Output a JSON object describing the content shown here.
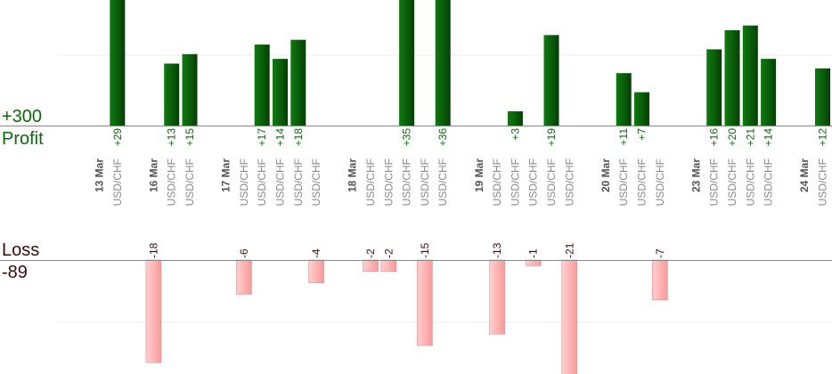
{
  "summary": {
    "profit_total": "+300",
    "profit_label": "Profit",
    "loss_label": "Loss",
    "loss_total": "-89"
  },
  "chart_data": {
    "type": "bar",
    "unit": "pips",
    "profit_axis_max": 40,
    "loss_axis_max": 25,
    "colors": {
      "profit": "#0a5c0a",
      "loss": "#ffb6b6",
      "profit_text": "#0b6b0b",
      "loss_text": "#3a0c0c"
    },
    "trades": [
      {
        "date": "13 Mar",
        "pair": "",
        "value": 0
      },
      {
        "date": "",
        "pair": "USD/CHF",
        "value": 29
      },
      {
        "date": "",
        "pair": "",
        "value": 0
      },
      {
        "date": "16 Mar",
        "pair": "",
        "value": -18
      },
      {
        "date": "",
        "pair": "USD/CHF",
        "value": 13
      },
      {
        "date": "",
        "pair": "USD/CHF",
        "value": 15
      },
      {
        "date": "",
        "pair": "",
        "value": 0
      },
      {
        "date": "17 Mar",
        "pair": "",
        "value": 0
      },
      {
        "date": "",
        "pair": "USD/CHF",
        "value": -6
      },
      {
        "date": "",
        "pair": "USD/CHF",
        "value": 17
      },
      {
        "date": "",
        "pair": "USD/CHF",
        "value": 14
      },
      {
        "date": "",
        "pair": "USD/CHF",
        "value": 18
      },
      {
        "date": "",
        "pair": "USD/CHF",
        "value": -4
      },
      {
        "date": "",
        "pair": "",
        "value": 0
      },
      {
        "date": "18 Mar",
        "pair": "",
        "value": 0
      },
      {
        "date": "",
        "pair": "USD/CHF",
        "value": -2
      },
      {
        "date": "",
        "pair": "USD/CHF",
        "value": -2
      },
      {
        "date": "",
        "pair": "USD/CHF",
        "value": 35
      },
      {
        "date": "",
        "pair": "USD/CHF",
        "value": -15
      },
      {
        "date": "",
        "pair": "USD/CHF",
        "value": 36
      },
      {
        "date": "",
        "pair": "",
        "value": 0
      },
      {
        "date": "19 Mar",
        "pair": "",
        "value": 0
      },
      {
        "date": "",
        "pair": "USD/CHF",
        "value": -13
      },
      {
        "date": "",
        "pair": "USD/CHF",
        "value": 3
      },
      {
        "date": "",
        "pair": "USD/CHF",
        "value": -1
      },
      {
        "date": "",
        "pair": "USD/CHF",
        "value": 19
      },
      {
        "date": "",
        "pair": "USD/CHF",
        "value": -21
      },
      {
        "date": "",
        "pair": "",
        "value": 0
      },
      {
        "date": "20 Mar",
        "pair": "",
        "value": 0
      },
      {
        "date": "",
        "pair": "USD/CHF",
        "value": 11
      },
      {
        "date": "",
        "pair": "USD/CHF",
        "value": 7
      },
      {
        "date": "",
        "pair": "USD/CHF",
        "value": -7
      },
      {
        "date": "",
        "pair": "",
        "value": 0
      },
      {
        "date": "23 Mar",
        "pair": "",
        "value": 0
      },
      {
        "date": "",
        "pair": "USD/CHF",
        "value": 16
      },
      {
        "date": "",
        "pair": "USD/CHF",
        "value": 20
      },
      {
        "date": "",
        "pair": "USD/CHF",
        "value": 21
      },
      {
        "date": "",
        "pair": "USD/CHF",
        "value": 14
      },
      {
        "date": "",
        "pair": "",
        "value": 0
      },
      {
        "date": "24 Mar",
        "pair": "",
        "value": 0
      },
      {
        "date": "",
        "pair": "USD/CHF",
        "value": 12
      }
    ]
  }
}
